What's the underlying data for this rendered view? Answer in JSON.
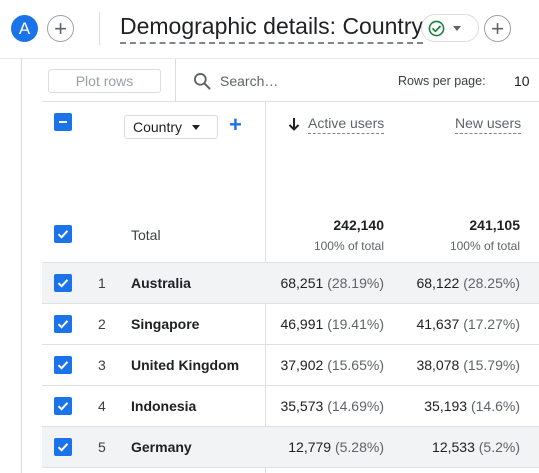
{
  "header": {
    "avatar_letter": "A",
    "title": "Demographic details: Country"
  },
  "toolbar": {
    "plot_rows_label": "Plot rows",
    "search_placeholder": "Search…",
    "rows_per_page_label": "Rows per page:",
    "rows_per_page_value": "10"
  },
  "table": {
    "dimension_select": "Country",
    "columns": [
      {
        "label": "Active users",
        "sorted": "descending"
      },
      {
        "label": "New users"
      }
    ],
    "total": {
      "label": "Total",
      "active_users": "242,140",
      "active_users_pct": "100% of total",
      "new_users": "241,105",
      "new_users_pct": "100% of total"
    },
    "rows": [
      {
        "rank": "1",
        "country": "Australia",
        "active": "68,251",
        "active_pct": "(28.19%)",
        "new": "68,122",
        "new_pct": "(28.25%)"
      },
      {
        "rank": "2",
        "country": "Singapore",
        "active": "46,991",
        "active_pct": "(19.41%)",
        "new": "41,637",
        "new_pct": "(17.27%)"
      },
      {
        "rank": "3",
        "country": "United Kingdom",
        "active": "37,902",
        "active_pct": "(15.65%)",
        "new": "38,078",
        "new_pct": "(15.79%)"
      },
      {
        "rank": "4",
        "country": "Indonesia",
        "active": "35,573",
        "active_pct": "(14.69%)",
        "new": "35,193",
        "new_pct": "(14.6%)"
      },
      {
        "rank": "5",
        "country": "Germany",
        "active": "12,779",
        "active_pct": "(5.28%)",
        "new": "12,533",
        "new_pct": "(5.2%)"
      }
    ]
  },
  "colors": {
    "accent": "#1a73e8",
    "success": "#188038",
    "row_highlight": "#f1f3f4"
  }
}
